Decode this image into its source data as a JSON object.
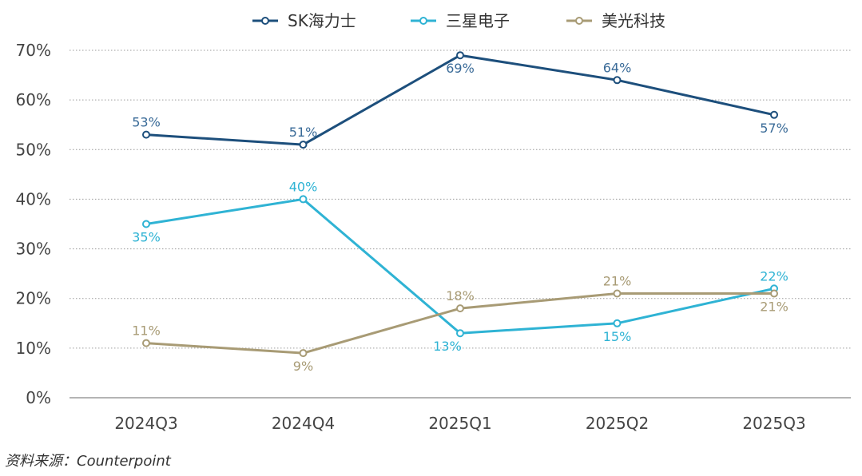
{
  "source_note": "资料来源：Counterpoint",
  "chart_data": {
    "type": "line",
    "categories": [
      "2024Q3",
      "2024Q4",
      "2025Q1",
      "2025Q2",
      "2025Q3"
    ],
    "ylim": [
      0,
      70
    ],
    "yticks": [
      "0%",
      "10%",
      "20%",
      "30%",
      "40%",
      "50%",
      "60%",
      "70%"
    ],
    "ytick_values": [
      0,
      10,
      20,
      30,
      40,
      50,
      60,
      70
    ],
    "grid": "horizontal-dotted",
    "legend_position": "top-center",
    "series": [
      {
        "name": "SK海力士",
        "color": "#1d4f7c",
        "label_color": "#3a6b98",
        "values": [
          53,
          51,
          69,
          64,
          57
        ],
        "labels": [
          "53%",
          "51%",
          "69%",
          "64%",
          "57%"
        ],
        "label_positions": [
          "above",
          "above",
          "below",
          "above",
          "below"
        ]
      },
      {
        "name": "三星电子",
        "color": "#2fb3d4",
        "label_color": "#2fb3d4",
        "values": [
          35,
          40,
          13,
          15,
          22
        ],
        "labels": [
          "35%",
          "40%",
          "13%",
          "15%",
          "22%"
        ],
        "label_positions": [
          "below",
          "above",
          "below-left",
          "below",
          "above"
        ]
      },
      {
        "name": "美光科技",
        "color": "#a89b75",
        "label_color": "#a89b75",
        "values": [
          11,
          9,
          18,
          21,
          21
        ],
        "labels": [
          "11%",
          "9%",
          "18%",
          "21%",
          "21%"
        ],
        "label_positions": [
          "above",
          "below",
          "above",
          "above",
          "below"
        ]
      }
    ]
  }
}
